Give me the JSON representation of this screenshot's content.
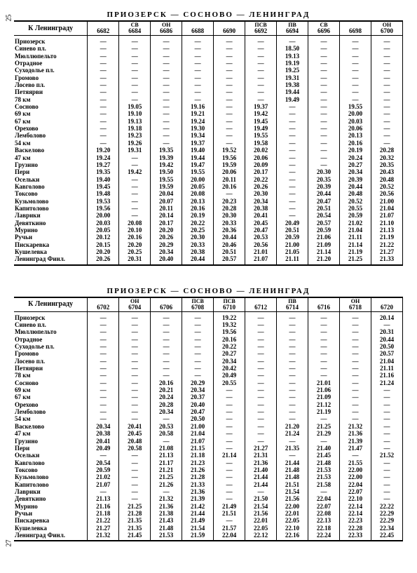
{
  "page_left": "25",
  "page_right": "27",
  "route_title": "ПРИОЗЕРСК — СОСНОВО — ЛЕНИНГРАД",
  "direction_header": "К Ленинграду",
  "dash": "—",
  "stations": [
    "Приозерск",
    "Синево пл.",
    "Мюллюпельто",
    "Отрадное",
    "Суходолье пл.",
    "Громово",
    "Лосево пл.",
    "Петяярви",
    "78 км",
    "Сосново",
    "69 км",
    "67 км",
    "Орехово",
    "Лемболово",
    "54 км",
    "Васкелово",
    "47 км",
    "Грузино",
    "Пери",
    "Осельки",
    "Кавголово",
    "Токсово",
    "Кузьмолово",
    "Капитолово",
    "Лаврики",
    "Девяткино",
    "Мурино",
    "Ручьи",
    "Пискаревка",
    "Кушелевка",
    "Ленинград Финл."
  ],
  "tables": [
    {
      "trains": [
        {
          "type": "",
          "num": "6682"
        },
        {
          "type": "СВ",
          "num": "6684"
        },
        {
          "type": "ОН",
          "num": "6686"
        },
        {
          "type": "",
          "num": "6688"
        },
        {
          "type": "",
          "num": "6690"
        },
        {
          "type": "ПСВ",
          "num": "6692"
        },
        {
          "type": "ПВ",
          "num": "6694"
        },
        {
          "type": "СВ",
          "num": "6696"
        },
        {
          "type": "",
          "num": "6698"
        },
        {
          "type": "ОН",
          "num": "6700"
        }
      ],
      "cells": [
        [
          "—",
          "—",
          "—",
          "—",
          "—",
          "—",
          "—",
          "—",
          "—",
          "—"
        ],
        [
          "—",
          "—",
          "—",
          "—",
          "—",
          "—",
          "18.50",
          "—",
          "—",
          "—"
        ],
        [
          "—",
          "—",
          "—",
          "—",
          "—",
          "—",
          "19.13",
          "—",
          "—",
          "—"
        ],
        [
          "—",
          "—",
          "—",
          "—",
          "—",
          "—",
          "19.19",
          "—",
          "—",
          "—"
        ],
        [
          "—",
          "—",
          "—",
          "—",
          "—",
          "—",
          "19.25",
          "—",
          "—",
          "—"
        ],
        [
          "—",
          "—",
          "—",
          "—",
          "—",
          "—",
          "19.31",
          "—",
          "—",
          "—"
        ],
        [
          "—",
          "—",
          "—",
          "—",
          "—",
          "—",
          "19.38",
          "—",
          "—",
          "—"
        ],
        [
          "—",
          "—",
          "—",
          "—",
          "—",
          "—",
          "19.44",
          "—",
          "—",
          "—"
        ],
        [
          "—",
          "—",
          "—",
          "—",
          "—",
          "—",
          "19.49",
          "—",
          "—",
          "—"
        ],
        [
          "—",
          "19.05",
          "—",
          "19.16",
          "—",
          "19.37",
          "—",
          "—",
          "19.55",
          "—"
        ],
        [
          "—",
          "19.10",
          "—",
          "19.21",
          "—",
          "19.42",
          "—",
          "—",
          "20.00",
          "—"
        ],
        [
          "—",
          "19.13",
          "—",
          "19.24",
          "—",
          "19.45",
          "—",
          "—",
          "20.03",
          "—"
        ],
        [
          "—",
          "19.18",
          "—",
          "19.30",
          "—",
          "19.49",
          "—",
          "—",
          "20.06",
          "—"
        ],
        [
          "—",
          "19.23",
          "—",
          "19.34",
          "—",
          "19.55",
          "—",
          "—",
          "20.13",
          "—"
        ],
        [
          "—",
          "19.26",
          "—",
          "19.37",
          "—",
          "19.58",
          "—",
          "—",
          "20.16",
          "—"
        ],
        [
          "19.20",
          "19.31",
          "19.35",
          "19.40",
          "19.52",
          "20.02",
          "—",
          "—",
          "20.19",
          "20.28"
        ],
        [
          "19.24",
          "—",
          "19.39",
          "19.44",
          "19.56",
          "20.06",
          "—",
          "—",
          "20.24",
          "20.32"
        ],
        [
          "19.27",
          "—",
          "19.42",
          "19.47",
          "19.59",
          "20.09",
          "—",
          "—",
          "20.27",
          "20.35"
        ],
        [
          "19.35",
          "19.42",
          "19.50",
          "19.55",
          "20.06",
          "20.17",
          "—",
          "20.30",
          "20.34",
          "20.43"
        ],
        [
          "19.40",
          "—",
          "19.55",
          "20.00",
          "20.11",
          "20.22",
          "—",
          "20.35",
          "20.39",
          "20.48"
        ],
        [
          "19.45",
          "—",
          "19.59",
          "20.05",
          "20.16",
          "20.26",
          "—",
          "20.39",
          "20.44",
          "20.52"
        ],
        [
          "19.48",
          "—",
          "20.04",
          "20.08",
          "—",
          "20.30",
          "—",
          "20.44",
          "20.48",
          "20.56"
        ],
        [
          "19.53",
          "—",
          "20.07",
          "20.13",
          "20.23",
          "20.34",
          "—",
          "20.47",
          "20.52",
          "21.00"
        ],
        [
          "19.56",
          "—",
          "20.11",
          "20.16",
          "20.28",
          "20.38",
          "—",
          "20.51",
          "20.55",
          "21.04"
        ],
        [
          "20.00",
          "—",
          "20.14",
          "20.19",
          "20.30",
          "20.41",
          "—",
          "20.54",
          "20.59",
          "21.07"
        ],
        [
          "20.03",
          "20.08",
          "20.17",
          "20.22",
          "20.33",
          "20.45",
          "20.49",
          "20.57",
          "21.02",
          "21.10"
        ],
        [
          "20.05",
          "20.10",
          "20.20",
          "20.25",
          "20.36",
          "20.47",
          "20.51",
          "20.59",
          "21.04",
          "21.13"
        ],
        [
          "20.12",
          "20.16",
          "20.26",
          "20.30",
          "20.44",
          "20.53",
          "20.59",
          "21.06",
          "21.11",
          "21.19"
        ],
        [
          "20.15",
          "20.20",
          "20.29",
          "20.33",
          "20.46",
          "20.56",
          "21.00",
          "21.09",
          "21.14",
          "21.22"
        ],
        [
          "20.20",
          "20.25",
          "20.34",
          "20.38",
          "20.51",
          "21.01",
          "21.05",
          "21.14",
          "21.19",
          "21.27"
        ],
        [
          "20.26",
          "20.31",
          "20.40",
          "20.44",
          "20.57",
          "21.07",
          "21.11",
          "21.20",
          "21.25",
          "21.33"
        ]
      ]
    },
    {
      "trains": [
        {
          "type": "",
          "num": "6702"
        },
        {
          "type": "ОН",
          "num": "6704"
        },
        {
          "type": "",
          "num": "6706"
        },
        {
          "type": "ПСВ",
          "num": "6708"
        },
        {
          "type": "ПСВ",
          "num": "6710"
        },
        {
          "type": "",
          "num": "6712"
        },
        {
          "type": "ПВ",
          "num": "6714"
        },
        {
          "type": "",
          "num": "6716"
        },
        {
          "type": "ОН",
          "num": "6718"
        },
        {
          "type": "",
          "num": "6720"
        }
      ],
      "cells": [
        [
          "—",
          "—",
          "—",
          "—",
          "19.22",
          "—",
          "—",
          "—",
          "—",
          "20.14"
        ],
        [
          "—",
          "—",
          "—",
          "—",
          "19.32",
          "—",
          "—",
          "—",
          "—",
          "—"
        ],
        [
          "—",
          "—",
          "—",
          "—",
          "19.56",
          "—",
          "—",
          "—",
          "—",
          "20.31"
        ],
        [
          "—",
          "—",
          "—",
          "—",
          "20.16",
          "—",
          "—",
          "—",
          "—",
          "20.44"
        ],
        [
          "—",
          "—",
          "—",
          "—",
          "20.22",
          "—",
          "—",
          "—",
          "—",
          "20.50"
        ],
        [
          "—",
          "—",
          "—",
          "—",
          "20.27",
          "—",
          "—",
          "—",
          "—",
          "20.57"
        ],
        [
          "—",
          "—",
          "—",
          "—",
          "20.34",
          "—",
          "—",
          "—",
          "—",
          "21.04"
        ],
        [
          "—",
          "—",
          "—",
          "—",
          "20.42",
          "—",
          "—",
          "—",
          "—",
          "21.11"
        ],
        [
          "—",
          "—",
          "—",
          "—",
          "20.49",
          "—",
          "—",
          "—",
          "—",
          "21.16"
        ],
        [
          "—",
          "—",
          "20.16",
          "20.29",
          "20.55",
          "—",
          "—",
          "21.01",
          "—",
          "21.24"
        ],
        [
          "—",
          "—",
          "20.21",
          "20.34",
          "—",
          "—",
          "—",
          "21.06",
          "—",
          "—"
        ],
        [
          "—",
          "—",
          "20.24",
          "20.37",
          "—",
          "—",
          "—",
          "21.09",
          "—",
          "—"
        ],
        [
          "—",
          "—",
          "20.28",
          "20.40",
          "—",
          "—",
          "—",
          "21.12",
          "—",
          "—"
        ],
        [
          "—",
          "—",
          "20.34",
          "20.47",
          "—",
          "—",
          "—",
          "21.19",
          "—",
          "—"
        ],
        [
          "—",
          "—",
          "—",
          "20.50",
          "—",
          "—",
          "—",
          "—",
          "—",
          "—"
        ],
        [
          "20.34",
          "20.41",
          "20.53",
          "21.00",
          "—",
          "—",
          "21.20",
          "21.25",
          "21.32",
          "—"
        ],
        [
          "20.38",
          "20.45",
          "20.58",
          "21.04",
          "—",
          "—",
          "21.24",
          "21.29",
          "21.36",
          "—"
        ],
        [
          "20.41",
          "20.48",
          "—",
          "21.07",
          "—",
          "—",
          "—",
          "—",
          "21.39",
          "—"
        ],
        [
          "20.49",
          "20.58",
          "21.08",
          "21.15",
          "—",
          "21.27",
          "21.35",
          "21.40",
          "21.47",
          "—"
        ],
        [
          "—",
          "—",
          "21.13",
          "21.18",
          "21.14",
          "21.31",
          "—",
          "21.45",
          "—",
          "21.52"
        ],
        [
          "20.54",
          "—",
          "21.17",
          "21.23",
          "—",
          "21.36",
          "21.44",
          "21.48",
          "21.55",
          "—"
        ],
        [
          "20.59",
          "—",
          "21.21",
          "21.26",
          "—",
          "21.40",
          "21.48",
          "21.53",
          "22.00",
          "—"
        ],
        [
          "21.02",
          "—",
          "21.25",
          "21.28",
          "—",
          "21.44",
          "21.48",
          "21.53",
          "22.00",
          "—"
        ],
        [
          "21.07",
          "—",
          "21.26",
          "21.33",
          "—",
          "21.44",
          "21.51",
          "21.58",
          "22.04",
          "—"
        ],
        [
          "—",
          "—",
          "—",
          "21.36",
          "—",
          "—",
          "21.54",
          "—",
          "22.07",
          "—"
        ],
        [
          "21.13",
          "—",
          "21.32",
          "21.39",
          "—",
          "21.50",
          "21.56",
          "22.04",
          "22.10",
          "—"
        ],
        [
          "21.16",
          "21.25",
          "21.36",
          "21.42",
          "21.49",
          "21.54",
          "22.00",
          "22.07",
          "22.14",
          "22.22"
        ],
        [
          "21.18",
          "21.28",
          "21.38",
          "21.44",
          "21.51",
          "21.56",
          "22.01",
          "22.08",
          "22.14",
          "22.29"
        ],
        [
          "21.22",
          "21.35",
          "21.43",
          "21.49",
          "—",
          "22.01",
          "22.05",
          "22.13",
          "22.23",
          "22.29"
        ],
        [
          "21.27",
          "21.35",
          "21.48",
          "21.54",
          "21.57",
          "22.05",
          "22.10",
          "22.18",
          "22.28",
          "22.34"
        ],
        [
          "21.32",
          "21.45",
          "21.53",
          "21.59",
          "22.04",
          "22.12",
          "22.16",
          "22.24",
          "22.33",
          "22.45"
        ]
      ]
    }
  ]
}
